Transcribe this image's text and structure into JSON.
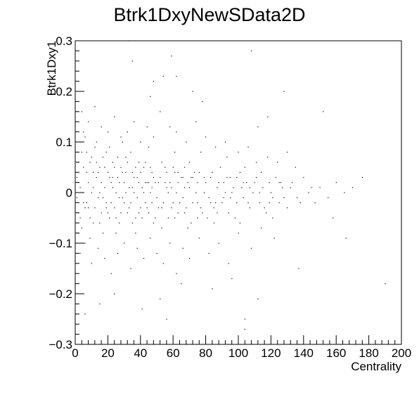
{
  "chart_data": {
    "type": "scatter",
    "title": "Btrk1DxyNewSData2D",
    "xlabel": "Centrality",
    "ylabel": "Btrk1Dxy1",
    "xlim": [
      0,
      200
    ],
    "ylim": [
      -0.3,
      0.3
    ],
    "x_ticks": [
      "0",
      "20",
      "40",
      "60",
      "80",
      "100",
      "120",
      "140",
      "160",
      "180",
      "200"
    ],
    "y_ticks": [
      "−0.3",
      "−0.2",
      "−0.1",
      "0",
      "0.1",
      "0.2",
      "0.3"
    ],
    "grid": false,
    "legend": "none",
    "marker_color": "#000000",
    "points": [
      [
        2,
        0.02
      ],
      [
        3,
        -0.05
      ],
      [
        4,
        0.08
      ],
      [
        5,
        -0.02
      ],
      [
        6,
        0.11
      ],
      [
        7,
        0.04
      ],
      [
        8,
        -0.03
      ],
      [
        9,
        0.06
      ],
      [
        10,
        0.0
      ],
      [
        11,
        -0.06
      ],
      [
        12,
        0.09
      ],
      [
        13,
        0.03
      ],
      [
        14,
        -0.01
      ],
      [
        15,
        0.05
      ],
      [
        16,
        -0.04
      ],
      [
        17,
        0.07
      ],
      [
        18,
        0.01
      ],
      [
        19,
        -0.02
      ],
      [
        20,
        0.04
      ],
      [
        21,
        -0.05
      ],
      [
        22,
        0.02
      ],
      [
        23,
        0.06
      ],
      [
        24,
        -0.03
      ],
      [
        25,
        0.0
      ],
      [
        26,
        0.03
      ],
      [
        27,
        -0.06
      ],
      [
        28,
        0.05
      ],
      [
        29,
        -0.01
      ],
      [
        30,
        0.02
      ],
      [
        31,
        0.07
      ],
      [
        32,
        -0.04
      ],
      [
        33,
        0.01
      ],
      [
        34,
        -0.02
      ],
      [
        35,
        0.04
      ],
      [
        36,
        0.0
      ],
      [
        37,
        -0.05
      ],
      [
        38,
        0.03
      ],
      [
        39,
        0.06
      ],
      [
        40,
        -0.03
      ],
      [
        41,
        0.01
      ],
      [
        42,
        0.05
      ],
      [
        43,
        -0.02
      ],
      [
        44,
        0.02
      ],
      [
        45,
        -0.04
      ],
      [
        46,
        0.0
      ],
      [
        47,
        0.04
      ],
      [
        48,
        -0.06
      ],
      [
        49,
        0.02
      ],
      [
        50,
        -0.01
      ],
      [
        52,
        0.03
      ],
      [
        53,
        -0.03
      ],
      [
        55,
        0.05
      ],
      [
        56,
        0.01
      ],
      [
        57,
        -0.05
      ],
      [
        58,
        0.02
      ],
      [
        60,
        -0.02
      ],
      [
        61,
        0.04
      ],
      [
        62,
        0.0
      ],
      [
        63,
        -0.04
      ],
      [
        65,
        0.03
      ],
      [
        66,
        -0.01
      ],
      [
        67,
        0.05
      ],
      [
        68,
        -0.03
      ],
      [
        70,
        0.01
      ],
      [
        71,
        -0.06
      ],
      [
        72,
        0.03
      ],
      [
        74,
        0.0
      ],
      [
        75,
        -0.02
      ],
      [
        76,
        0.04
      ],
      [
        78,
        -0.04
      ],
      [
        80,
        0.02
      ],
      [
        82,
        -0.01
      ],
      [
        83,
        0.03
      ],
      [
        85,
        -0.03
      ],
      [
        87,
        0.01
      ],
      [
        89,
        0.05
      ],
      [
        90,
        -0.02
      ],
      [
        92,
        0.0
      ],
      [
        94,
        -0.04
      ],
      [
        95,
        0.03
      ],
      [
        97,
        0.01
      ],
      [
        99,
        -0.02
      ],
      [
        101,
        0.04
      ],
      [
        103,
        -0.01
      ],
      [
        105,
        0.02
      ],
      [
        107,
        -0.03
      ],
      [
        109,
        0.0
      ],
      [
        111,
        0.03
      ],
      [
        113,
        -0.02
      ],
      [
        115,
        0.01
      ],
      [
        117,
        -0.04
      ],
      [
        119,
        0.02
      ],
      [
        121,
        -0.01
      ],
      [
        123,
        0.03
      ],
      [
        125,
        -0.02
      ],
      [
        127,
        0.01
      ],
      [
        130,
        -0.03
      ],
      [
        133,
        0.02
      ],
      [
        136,
        -0.01
      ],
      [
        140,
        0.03
      ],
      [
        143,
        0.0
      ],
      [
        147,
        -0.02
      ],
      [
        150,
        0.01
      ],
      [
        155,
        -0.01
      ],
      [
        160,
        0.02
      ],
      [
        165,
        0.0
      ],
      [
        170,
        0.01
      ],
      [
        4,
        0.16
      ],
      [
        8,
        0.14
      ],
      [
        12,
        0.17
      ],
      [
        16,
        0.13
      ],
      [
        20,
        0.12
      ],
      [
        24,
        0.15
      ],
      [
        28,
        0.11
      ],
      [
        32,
        0.12
      ],
      [
        36,
        0.14
      ],
      [
        40,
        0.1
      ],
      [
        44,
        0.13
      ],
      [
        48,
        0.11
      ],
      [
        52,
        0.16
      ],
      [
        58,
        0.13
      ],
      [
        62,
        0.12
      ],
      [
        68,
        0.1
      ],
      [
        74,
        0.14
      ],
      [
        80,
        0.11
      ],
      [
        86,
        0.09
      ],
      [
        92,
        0.1
      ],
      [
        100,
        0.08
      ],
      [
        106,
        0.09
      ],
      [
        112,
        0.13
      ],
      [
        118,
        0.07
      ],
      [
        124,
        0.06
      ],
      [
        130,
        0.08
      ],
      [
        3,
        -0.12
      ],
      [
        6,
        -0.1
      ],
      [
        10,
        -0.14
      ],
      [
        14,
        -0.11
      ],
      [
        18,
        -0.13
      ],
      [
        22,
        -0.16
      ],
      [
        26,
        -0.12
      ],
      [
        30,
        -0.1
      ],
      [
        34,
        -0.15
      ],
      [
        38,
        -0.11
      ],
      [
        42,
        -0.13
      ],
      [
        46,
        -0.09
      ],
      [
        50,
        -0.12
      ],
      [
        54,
        -0.14
      ],
      [
        58,
        -0.1
      ],
      [
        62,
        -0.16
      ],
      [
        66,
        -0.11
      ],
      [
        70,
        -0.13
      ],
      [
        76,
        -0.09
      ],
      [
        82,
        -0.12
      ],
      [
        88,
        -0.1
      ],
      [
        94,
        -0.14
      ],
      [
        100,
        -0.08
      ],
      [
        108,
        -0.11
      ],
      [
        114,
        -0.07
      ],
      [
        122,
        -0.09
      ],
      [
        6,
        -0.24
      ],
      [
        15,
        -0.22
      ],
      [
        24,
        -0.2
      ],
      [
        33,
        0.3
      ],
      [
        35,
        0.26
      ],
      [
        41,
        -0.23
      ],
      [
        48,
        0.22
      ],
      [
        52,
        -0.21
      ],
      [
        56,
        -0.25
      ],
      [
        59,
        0.27
      ],
      [
        62,
        0.23
      ],
      [
        65,
        -0.18
      ],
      [
        72,
        0.2
      ],
      [
        78,
        0.18
      ],
      [
        84,
        -0.19
      ],
      [
        96,
        -0.17
      ],
      [
        104,
        -0.25
      ],
      [
        108,
        0.28
      ],
      [
        112,
        -0.21
      ],
      [
        118,
        0.15
      ],
      [
        128,
        0.2
      ],
      [
        137,
        -0.15
      ],
      [
        152,
        0.16
      ],
      [
        158,
        -0.05
      ],
      [
        166,
        -0.09
      ],
      [
        176,
        0.03
      ],
      [
        190,
        -0.18
      ],
      [
        104,
        -0.27
      ],
      [
        54,
        0.23
      ],
      [
        46,
        0.19
      ],
      [
        1,
        0.03
      ],
      [
        1,
        -0.01
      ],
      [
        2,
        0.06
      ],
      [
        2,
        -0.04
      ],
      [
        3,
        0.1
      ],
      [
        4,
        -0.07
      ],
      [
        5,
        0.05
      ],
      [
        6,
        -0.03
      ],
      [
        7,
        0.08
      ],
      [
        8,
        0.02
      ],
      [
        9,
        -0.05
      ],
      [
        10,
        0.07
      ],
      [
        11,
        0.01
      ],
      [
        12,
        -0.03
      ],
      [
        13,
        0.06
      ],
      [
        14,
        0.04
      ],
      [
        15,
        -0.06
      ],
      [
        16,
        0.02
      ],
      [
        17,
        -0.01
      ],
      [
        18,
        0.05
      ],
      [
        19,
        0.08
      ],
      [
        20,
        -0.04
      ],
      [
        21,
        0.03
      ],
      [
        22,
        -0.02
      ],
      [
        23,
        0.01
      ],
      [
        24,
        0.05
      ],
      [
        25,
        -0.05
      ],
      [
        26,
        0.07
      ],
      [
        27,
        0.02
      ],
      [
        28,
        -0.04
      ],
      [
        29,
        0.04
      ],
      [
        30,
        -0.02
      ],
      [
        31,
        0.0
      ],
      [
        32,
        0.06
      ],
      [
        33,
        -0.03
      ],
      [
        34,
        0.08
      ],
      [
        35,
        -0.06
      ],
      [
        36,
        0.03
      ],
      [
        37,
        0.05
      ],
      [
        38,
        -0.01
      ],
      [
        39,
        0.02
      ],
      [
        40,
        0.04
      ],
      [
        41,
        -0.05
      ],
      [
        42,
        0.0
      ],
      [
        43,
        0.06
      ],
      [
        44,
        -0.03
      ],
      [
        45,
        0.02
      ],
      [
        46,
        0.05
      ],
      [
        47,
        -0.02
      ],
      [
        48,
        0.03
      ],
      [
        49,
        -0.05
      ],
      [
        51,
        0.02
      ],
      [
        53,
        0.06
      ],
      [
        54,
        -0.02
      ],
      [
        56,
        0.04
      ],
      [
        57,
        0.0
      ],
      [
        59,
        -0.03
      ],
      [
        60,
        0.05
      ],
      [
        61,
        -0.05
      ],
      [
        63,
        0.02
      ],
      [
        64,
        -0.02
      ],
      [
        66,
        0.03
      ],
      [
        67,
        -0.04
      ],
      [
        69,
        0.02
      ],
      [
        70,
        0.06
      ],
      [
        72,
        -0.02
      ],
      [
        73,
        0.04
      ],
      [
        75,
        0.02
      ],
      [
        77,
        -0.03
      ],
      [
        79,
        0.03
      ],
      [
        81,
        -0.05
      ],
      [
        84,
        0.04
      ],
      [
        86,
        -0.02
      ],
      [
        88,
        0.02
      ],
      [
        91,
        -0.01
      ],
      [
        93,
        0.03
      ],
      [
        96,
        0.0
      ],
      [
        98,
        -0.05
      ],
      [
        102,
        0.01
      ],
      [
        104,
        0.05
      ],
      [
        106,
        -0.02
      ],
      [
        110,
        0.02
      ],
      [
        114,
        0.04
      ],
      [
        116,
        -0.03
      ],
      [
        120,
        0.0
      ],
      [
        126,
        0.02
      ],
      [
        128,
        -0.01
      ],
      [
        132,
        0.01
      ],
      [
        138,
        -0.02
      ],
      [
        145,
        0.01
      ],
      [
        2,
        -0.08
      ],
      [
        5,
        0.12
      ],
      [
        9,
        -0.09
      ],
      [
        13,
        0.1
      ],
      [
        17,
        -0.08
      ],
      [
        21,
        0.09
      ],
      [
        25,
        -0.08
      ],
      [
        29,
        0.1
      ],
      [
        37,
        -0.08
      ],
      [
        45,
        0.09
      ],
      [
        53,
        -0.07
      ],
      [
        61,
        0.08
      ],
      [
        69,
        -0.07
      ],
      [
        77,
        0.08
      ],
      [
        85,
        -0.06
      ],
      [
        93,
        0.07
      ],
      [
        101,
        -0.06
      ],
      [
        111,
        0.06
      ],
      [
        121,
        -0.05
      ],
      [
        135,
        0.05
      ],
      [
        3,
        0.01
      ],
      [
        7,
        -0.02
      ],
      [
        11,
        0.04
      ],
      [
        15,
        0.0
      ],
      [
        19,
        -0.03
      ],
      [
        23,
        0.03
      ],
      [
        27,
        -0.01
      ],
      [
        31,
        0.04
      ],
      [
        35,
        0.01
      ],
      [
        39,
        -0.04
      ],
      [
        43,
        0.02
      ],
      [
        47,
        0.01
      ],
      [
        51,
        -0.03
      ],
      [
        55,
        0.02
      ],
      [
        59,
        0.01
      ],
      [
        63,
        0.04
      ],
      [
        67,
        0.01
      ],
      [
        71,
        0.03
      ],
      [
        75,
        -0.05
      ],
      [
        79,
        0.0
      ],
      [
        83,
        -0.02
      ],
      [
        87,
        -0.04
      ],
      [
        91,
        0.02
      ],
      [
        95,
        -0.01
      ],
      [
        99,
        0.03
      ],
      [
        103,
        0.02
      ],
      [
        107,
        0.01
      ],
      [
        113,
        0.0
      ],
      [
        119,
        -0.02
      ],
      [
        125,
        0.02
      ]
    ]
  }
}
